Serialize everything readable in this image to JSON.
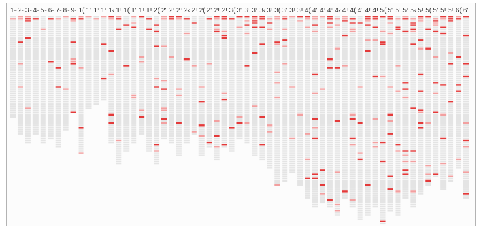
{
  "chart_data": {
    "type": "heatmap",
    "title": "",
    "xlabel": "",
    "ylabel": "",
    "column_labels": [
      "1-",
      "2-",
      "3-",
      "4-",
      "5-",
      "6-",
      "7-",
      "8-",
      "9-",
      "1(",
      "1'",
      "1:",
      "1:",
      "1‹",
      "1!",
      "1(",
      "1'",
      "1!",
      "1!",
      "2(",
      "2'",
      "2:",
      "2:",
      "2‹",
      "2!",
      "2(",
      "2'",
      "2!",
      "2!",
      "3(",
      "3'",
      "3:",
      "3:",
      "3‹",
      "3!",
      "3(",
      "3'",
      "3!",
      "3!",
      "4(",
      "4'",
      "4:",
      "4:",
      "4‹",
      "4!",
      "4(",
      "4'",
      "4!",
      "4!",
      "5(",
      "5'",
      "5:",
      "5:",
      "5‹",
      "5!",
      "5(",
      "5'",
      "5!",
      "5!",
      "6(",
      "6'"
    ],
    "column_lengths": [
      48,
      56,
      60,
      56,
      60,
      58,
      62,
      54,
      46,
      65,
      44,
      42,
      40,
      60,
      70,
      64,
      60,
      56,
      64,
      70,
      58,
      60,
      66,
      60,
      56,
      66,
      62,
      68,
      62,
      64,
      58,
      60,
      66,
      68,
      72,
      80,
      78,
      74,
      80,
      86,
      90,
      88,
      90,
      94,
      86,
      90,
      96,
      94,
      90,
      98,
      92,
      94,
      86,
      90,
      84,
      80,
      76,
      82,
      78,
      72,
      86
    ],
    "cell_color_empty": "#e4e4e4",
    "cell_color_hit": "#e33a3a",
    "cell_color_hit_light": "#f2a0a0",
    "density_note": "sparse red cells, denser at top rows and in right-hand columns"
  }
}
